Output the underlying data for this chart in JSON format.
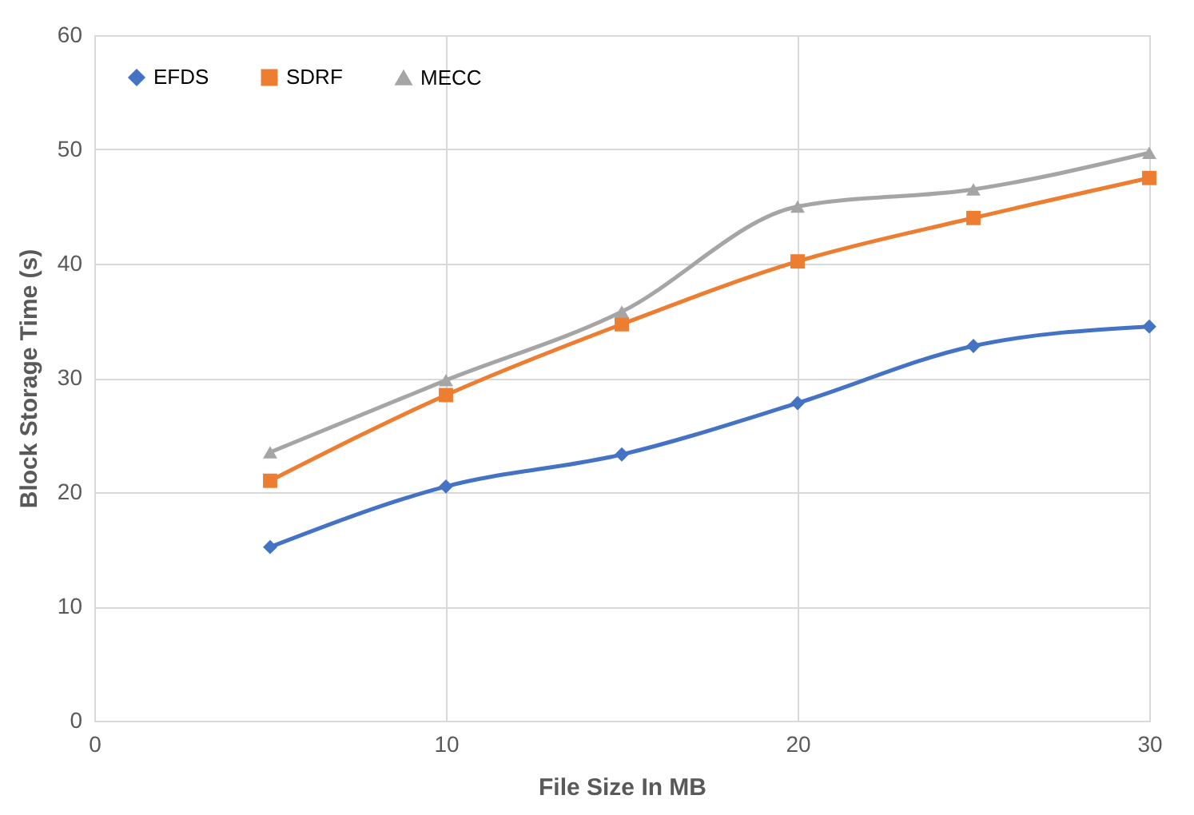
{
  "chart_data": {
    "type": "line",
    "xlabel": "File Size In MB",
    "ylabel": "Block Storage Time (s)",
    "x": [
      5,
      10,
      15,
      20,
      25,
      30
    ],
    "series": [
      {
        "name": "EFDS",
        "color": "#4472c4",
        "marker": "diamond",
        "values": [
          15.2,
          20.5,
          23.3,
          27.8,
          32.8,
          34.5
        ]
      },
      {
        "name": "SDRF",
        "color": "#ed7d31",
        "marker": "square",
        "values": [
          21,
          28.5,
          34.7,
          40.2,
          44,
          47.5
        ]
      },
      {
        "name": "MECC",
        "color": "#a5a5a5",
        "marker": "triangle",
        "values": [
          23.5,
          29.8,
          35.8,
          45,
          46.5,
          49.7
        ]
      }
    ],
    "xlim": [
      0,
      30
    ],
    "xticks": [
      0,
      10,
      20,
      30
    ],
    "ylim": [
      0,
      60
    ],
    "yticks": [
      0,
      10,
      20,
      30,
      40,
      50,
      60
    ],
    "grid": true,
    "legend": "top left",
    "line_style": "solid"
  }
}
